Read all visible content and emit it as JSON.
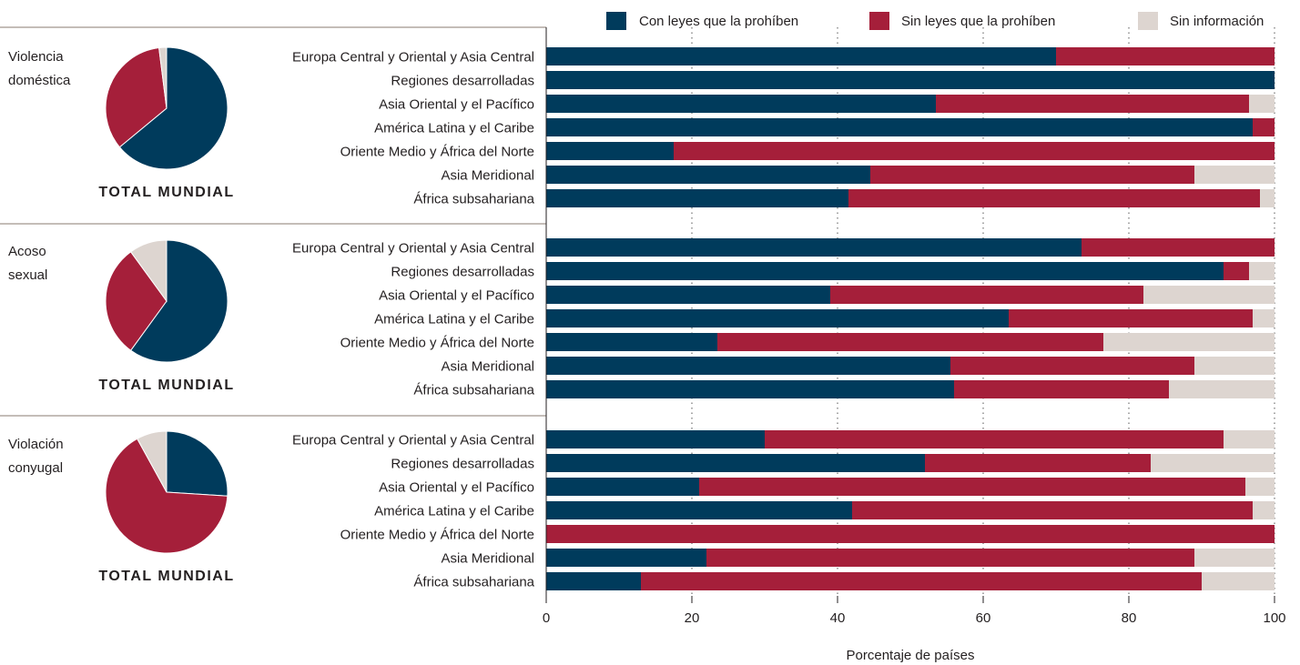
{
  "colors": {
    "con": "#003b5c",
    "sin": "#a51f3a",
    "info": "#ddd5d0",
    "text": "#231f20",
    "divider": "#8a7b72"
  },
  "chart_data": {
    "type": "bar",
    "orientation": "horizontal",
    "stacked": true,
    "xlabel": "Porcentaje de países",
    "xlim": [
      0,
      100
    ],
    "xticks": [
      "0",
      "20",
      "40",
      "60",
      "80",
      "100"
    ],
    "grid": true,
    "legend": {
      "placement": "top",
      "entries": [
        "Con leyes que la prohíben",
        "Sin leyes que la prohíben",
        "Sin información"
      ]
    },
    "categories": [
      "Europa Central y Oriental y Asia Central",
      "Regiones desarrolladas",
      "Asia Oriental y el Pacífico",
      "América Latina y el Caribe",
      "Oriente Medio y África del Norte",
      "Asia Meridional",
      "África subsahariana"
    ],
    "panels": [
      {
        "label_lines": [
          "Violencia",
          "doméstica"
        ],
        "pie_caption": "TOTAL MUNDIAL",
        "pie": [
          64,
          34,
          2
        ],
        "series": [
          {
            "name": "Con leyes que la prohíben",
            "values": [
              70,
              100,
              53.5,
              97,
              17.5,
              44.5,
              41.5
            ]
          },
          {
            "name": "Sin leyes que la prohíben",
            "values": [
              30,
              0,
              43,
              3,
              82.5,
              44.5,
              56.5
            ]
          },
          {
            "name": "Sin información",
            "values": [
              0,
              0,
              3.5,
              0,
              0,
              11,
              2
            ]
          }
        ]
      },
      {
        "label_lines": [
          "Acoso",
          "sexual"
        ],
        "pie_caption": "TOTAL MUNDIAL",
        "pie": [
          60,
          30,
          10
        ],
        "series": [
          {
            "name": "Con leyes que la prohíben",
            "values": [
              73.5,
              93,
              39,
              63.5,
              23.5,
              55.5,
              56
            ]
          },
          {
            "name": "Sin leyes que la prohíben",
            "values": [
              26.5,
              3.5,
              43,
              33.5,
              53,
              33.5,
              29.5
            ]
          },
          {
            "name": "Sin información",
            "values": [
              0,
              3.5,
              18,
              3,
              23.5,
              11,
              14.5
            ]
          }
        ]
      },
      {
        "label_lines": [
          "Violación",
          "conyugal"
        ],
        "pie_caption": "TOTAL MUNDIAL",
        "pie": [
          26,
          66,
          8
        ],
        "series": [
          {
            "name": "Con leyes que la prohíben",
            "values": [
              30,
              52,
              21,
              42,
              0,
              22,
              13
            ]
          },
          {
            "name": "Sin leyes que la prohíben",
            "values": [
              63,
              31,
              75,
              55,
              100,
              67,
              77
            ]
          },
          {
            "name": "Sin información",
            "values": [
              7,
              17,
              4,
              3,
              0,
              11,
              10
            ]
          }
        ]
      }
    ]
  }
}
